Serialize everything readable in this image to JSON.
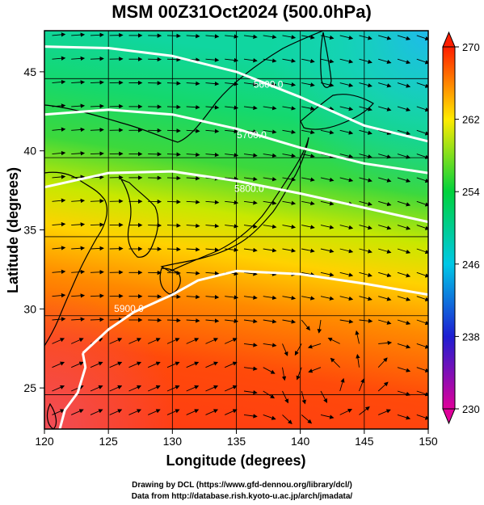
{
  "title": "MSM 00Z31Oct2024 (500.0hPa)",
  "x_axis": {
    "label": "Longitude (degrees)",
    "range": [
      120,
      150
    ],
    "ticks": [
      120,
      125,
      130,
      135,
      140,
      145,
      150
    ],
    "tick_labels": [
      "120",
      "125",
      "130",
      "135",
      "140",
      "145",
      "150"
    ]
  },
  "y_axis": {
    "label": "Latitude  (degrees)",
    "range": [
      22.4,
      47.6
    ],
    "ticks": [
      25,
      30,
      35,
      40,
      45
    ],
    "tick_labels": [
      "25",
      "30",
      "35",
      "40",
      "45"
    ]
  },
  "colorbar": {
    "range": [
      230,
      270
    ],
    "tick_values": [
      230,
      238,
      246,
      254,
      262,
      270
    ],
    "tick_labels": [
      "230",
      "238",
      "246",
      "254",
      "262",
      "270"
    ],
    "colors": [
      "#e0009a",
      "#1e1ed2",
      "#00c8e6",
      "#00d23c",
      "#ffeb00",
      "#ff1e00"
    ]
  },
  "contours": [
    {
      "label": "5600.0",
      "label_lon": 137.5,
      "label_lat": 44.0,
      "lons": [
        120,
        125,
        130,
        135,
        140,
        145,
        150
      ],
      "lats": [
        46.6,
        46.5,
        46.0,
        45.0,
        43.4,
        41.6,
        40.6
      ]
    },
    {
      "label": "5700.0",
      "label_lon": 136.2,
      "label_lat": 40.8,
      "lons": [
        120,
        125,
        130,
        135,
        140,
        145,
        150
      ],
      "lats": [
        42.3,
        42.6,
        42.3,
        41.4,
        40.2,
        39.2,
        38.6
      ]
    },
    {
      "label": "5800.0",
      "label_lon": 136.0,
      "label_lat": 37.4,
      "lons": [
        120,
        125,
        130,
        135,
        140,
        145,
        150
      ],
      "lats": [
        37.7,
        38.6,
        38.7,
        38.1,
        37.3,
        36.4,
        35.5
      ]
    },
    {
      "label": "5900.0",
      "label_lon": 126.6,
      "label_lat": 29.8,
      "lons": [
        123,
        125,
        127,
        130,
        132,
        135,
        140,
        145,
        150
      ],
      "lats": [
        27.2,
        28.7,
        29.8,
        30.9,
        31.8,
        32.4,
        32.2,
        31.6,
        30.9
      ]
    },
    {
      "label": "",
      "label_lon": 0,
      "label_lat": 0,
      "lons": [
        121.2,
        121.6,
        122.6,
        123.2,
        123.0
      ],
      "lats": [
        22.4,
        23.6,
        24.7,
        26.3,
        27.2
      ]
    }
  ],
  "credits": {
    "line1": "Drawing by DCL (https://www.gfd-dennou.org/library/dcl/)",
    "line2": "Data from http://database.rish.kyoto-u.ac.jp/arch/jmadata/"
  }
}
